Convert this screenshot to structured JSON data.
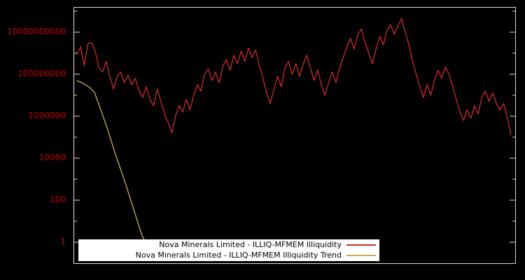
{
  "page": {
    "background": "#000000"
  },
  "chart": {
    "border_color": "#dcdcdc",
    "axis_label_color": "#c00000",
    "y_ticks": [
      {
        "label": "10000000000",
        "log10": 10
      },
      {
        "label": "100000000",
        "log10": 8
      },
      {
        "label": "1000000",
        "log10": 6
      },
      {
        "label": "10000",
        "log10": 4
      },
      {
        "label": "100",
        "log10": 2
      },
      {
        "label": "1",
        "log10": 0
      }
    ]
  },
  "legend": {
    "background": "#ffffff",
    "entries": [
      {
        "label": "Nova Minerals Limited - ILLIQ-MFMEM Illiquidity",
        "color": "#d02a2a"
      },
      {
        "label": "Nova Minerals Limited - ILLIQ-MFMEM Illiquidity Trend",
        "color": "#c9ad4b"
      }
    ]
  },
  "chart_data": {
    "type": "line",
    "title": "",
    "xlabel": "",
    "ylabel": "",
    "yscale": "log10",
    "ylim": [
      0.1,
      150000000000
    ],
    "ylim_log10": [
      -1,
      11.17
    ],
    "y_tick_values": [
      1,
      100,
      10000,
      1000000,
      100000000,
      10000000000
    ],
    "x_range": [
      0,
      1
    ],
    "grid": false,
    "legend_position": "bottom-inside",
    "series": [
      {
        "name": "Nova Minerals Limited - ILLIQ-MFMEM Illiquidity",
        "color": "#d02a2a",
        "x_spacing": "uniform",
        "log10_values": [
          8.95,
          9.3,
          8.4,
          9.45,
          9.5,
          9.1,
          8.3,
          8.1,
          8.6,
          7.9,
          7.3,
          7.9,
          8.1,
          7.6,
          7.95,
          7.5,
          7.8,
          7.2,
          6.9,
          7.4,
          6.8,
          6.5,
          7.3,
          6.7,
          6.1,
          5.7,
          5.2,
          6.0,
          6.5,
          6.2,
          6.8,
          6.3,
          7.0,
          7.5,
          7.2,
          8.0,
          8.25,
          7.7,
          8.1,
          7.6,
          8.4,
          8.7,
          8.2,
          8.9,
          8.5,
          9.1,
          8.6,
          9.25,
          8.8,
          9.15,
          8.4,
          7.8,
          7.1,
          6.6,
          7.3,
          7.9,
          7.4,
          8.3,
          8.6,
          8.0,
          8.5,
          7.9,
          8.45,
          8.9,
          8.3,
          7.7,
          8.2,
          7.5,
          7.0,
          7.6,
          8.1,
          7.6,
          8.3,
          8.8,
          9.3,
          9.7,
          9.2,
          9.9,
          10.15,
          9.5,
          9.0,
          8.5,
          9.2,
          9.8,
          9.4,
          10.1,
          10.35,
          9.9,
          10.3,
          10.65,
          10.0,
          9.4,
          8.6,
          8.0,
          7.4,
          6.9,
          7.5,
          7.0,
          7.7,
          8.2,
          7.8,
          8.35,
          8.0,
          7.4,
          6.8,
          6.2,
          5.8,
          6.3,
          5.9,
          6.5,
          6.1,
          6.9,
          7.2,
          6.7,
          7.1,
          6.6,
          6.3,
          6.6,
          5.9,
          5.1
        ]
      },
      {
        "name": "Nova Minerals Limited - ILLIQ-MFMEM Illiquidity Trend",
        "color": "#c9ad4b",
        "points_x": [
          0,
          0.01,
          0.02,
          0.03,
          0.04,
          0.055,
          0.07,
          0.09,
          0.11,
          0.13,
          0.15,
          0.158
        ],
        "points_log10": [
          7.7,
          7.6,
          7.5,
          7.35,
          7.15,
          6.3,
          5.4,
          4.1,
          2.9,
          1.6,
          0.3,
          0.0
        ]
      }
    ]
  }
}
